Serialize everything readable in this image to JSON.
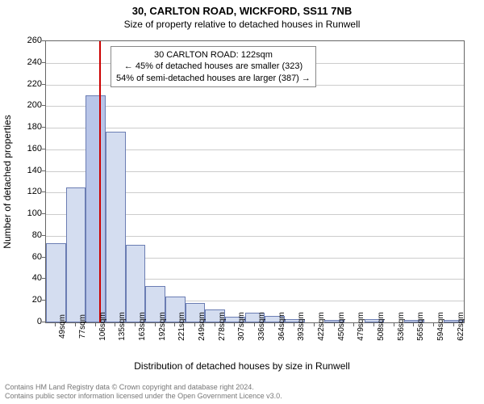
{
  "chart": {
    "type": "histogram",
    "title": "30, CARLTON ROAD, WICKFORD, SS11 7NB",
    "subtitle": "Size of property relative to detached houses in Runwell",
    "y_axis_label": "Number of detached properties",
    "x_axis_label": "Distribution of detached houses by size in Runwell",
    "ylim": [
      0,
      260
    ],
    "ytick_step": 20,
    "background_color": "#ffffff",
    "grid_color": "#cccccc",
    "border_color": "#666666",
    "bar_fill": "#d4ddf0",
    "bar_border": "#6b7db3",
    "highlight_fill": "#b8c5e8",
    "marker_color": "#cc0000",
    "marker_value": 122,
    "x_categories": [
      "49sqm",
      "77sqm",
      "106sqm",
      "135sqm",
      "163sqm",
      "192sqm",
      "221sqm",
      "249sqm",
      "278sqm",
      "307sqm",
      "336sqm",
      "364sqm",
      "393sqm",
      "422sqm",
      "450sqm",
      "479sqm",
      "508sqm",
      "536sqm",
      "565sqm",
      "594sqm",
      "622sqm"
    ],
    "x_numeric": [
      49,
      77,
      106,
      135,
      163,
      192,
      221,
      249,
      278,
      307,
      336,
      364,
      393,
      422,
      450,
      479,
      508,
      536,
      565,
      594,
      622
    ],
    "values": [
      73,
      125,
      210,
      176,
      72,
      34,
      24,
      18,
      12,
      5,
      9,
      6,
      3,
      0,
      2,
      0,
      3,
      0,
      2,
      0,
      2
    ],
    "highlight_index": 2,
    "annotation": {
      "line1": "30 CARLTON ROAD: 122sqm",
      "line2": "← 45% of detached houses are smaller (323)",
      "line3": "54% of semi-detached houses are larger (387) →",
      "border_color": "#888888",
      "bg_color": "#ffffff",
      "fontsize": 11
    },
    "title_fontsize": 13,
    "subtitle_fontsize": 12,
    "label_fontsize": 12,
    "tick_fontsize": 11
  },
  "footer": {
    "line1": "Contains HM Land Registry data © Crown copyright and database right 2024.",
    "line2": "Contains public sector information licensed under the Open Government Licence v3.0."
  }
}
